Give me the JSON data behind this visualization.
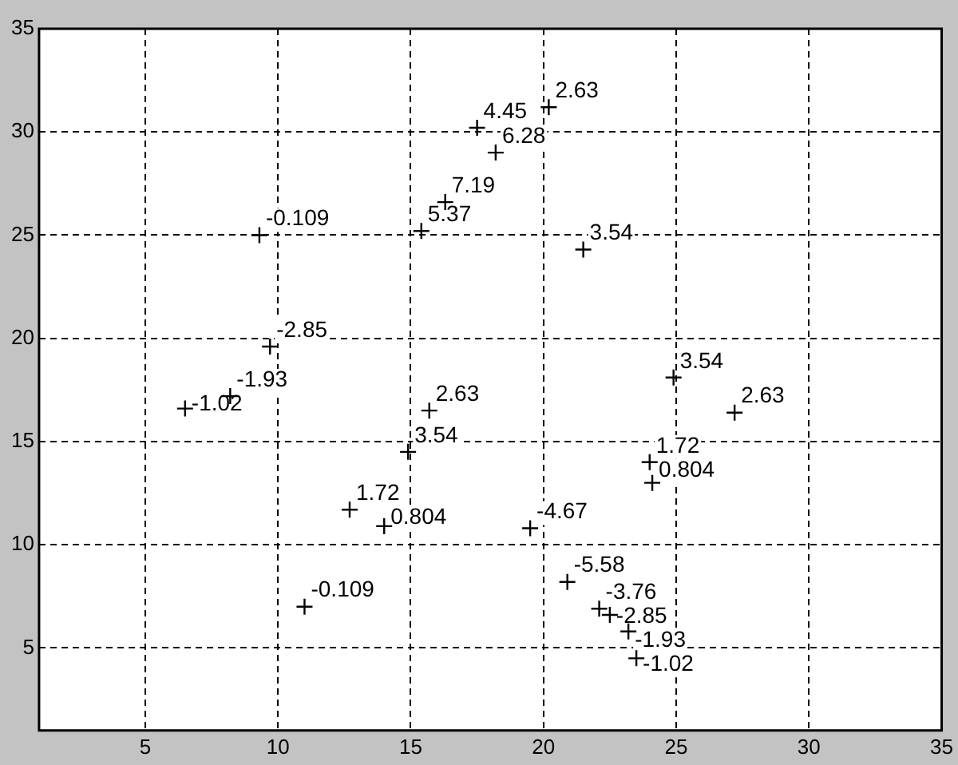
{
  "chart_data": {
    "type": "scatter",
    "xlim": [
      1,
      35
    ],
    "ylim": [
      1,
      35
    ],
    "xticks": [
      5,
      10,
      15,
      20,
      25,
      30,
      35
    ],
    "yticks": [
      5,
      10,
      15,
      20,
      25,
      30,
      35
    ],
    "grid": true,
    "marker": "cross",
    "legend": false,
    "series": [
      {
        "color": "#000000",
        "x": [
          9.3,
          20.2,
          17.5,
          18.2,
          16.3,
          15.4,
          21.5,
          9.7,
          8.2,
          6.5,
          15.7,
          14.9,
          12.7,
          14.0,
          11.0,
          24.9,
          27.2,
          24.0,
          24.1,
          19.5,
          20.9,
          22.1,
          22.5,
          23.2,
          23.5
        ],
        "values": [
          25.0,
          31.2,
          30.2,
          29.0,
          26.6,
          25.2,
          24.3,
          19.6,
          17.2,
          16.6,
          16.5,
          14.5,
          11.7,
          10.9,
          7.0,
          18.1,
          16.4,
          14.0,
          13.0,
          10.8,
          8.2,
          6.9,
          6.6,
          5.8,
          4.5
        ]
      }
    ],
    "annotations": [
      {
        "text": "-0.109",
        "x": 9.3,
        "y": 25.0
      },
      {
        "text": "2.63",
        "x": 20.2,
        "y": 31.2
      },
      {
        "text": "4.45",
        "x": 17.5,
        "y": 30.2
      },
      {
        "text": "6.28",
        "x": 18.2,
        "y": 29.0
      },
      {
        "text": "7.19",
        "x": 16.3,
        "y": 26.6
      },
      {
        "text": "5.37",
        "x": 15.4,
        "y": 25.2
      },
      {
        "text": "3.54",
        "x": 21.5,
        "y": 24.3
      },
      {
        "text": "-2.85",
        "x": 9.7,
        "y": 19.6
      },
      {
        "text": "-1.93",
        "x": 8.2,
        "y": 17.2
      },
      {
        "text": "-1.02",
        "x": 6.5,
        "y": 16.6
      },
      {
        "text": "2.63",
        "x": 15.7,
        "y": 16.5
      },
      {
        "text": "3.54",
        "x": 14.9,
        "y": 14.5
      },
      {
        "text": "1.72",
        "x": 12.7,
        "y": 11.7
      },
      {
        "text": "0.804",
        "x": 14.0,
        "y": 10.9
      },
      {
        "text": "-0.109",
        "x": 11.0,
        "y": 7.0
      },
      {
        "text": "3.54",
        "x": 24.9,
        "y": 18.1
      },
      {
        "text": "2.63",
        "x": 27.2,
        "y": 16.4
      },
      {
        "text": "1.72",
        "x": 24.0,
        "y": 14.0
      },
      {
        "text": "0.804",
        "x": 24.1,
        "y": 13.0
      },
      {
        "text": "-4.67",
        "x": 19.5,
        "y": 10.8
      },
      {
        "text": "-5.58",
        "x": 20.9,
        "y": 8.2
      },
      {
        "text": "-3.76",
        "x": 22.1,
        "y": 6.9
      },
      {
        "text": "-2.85",
        "x": 22.5,
        "y": 6.6
      },
      {
        "text": "-1.93",
        "x": 23.2,
        "y": 5.8
      },
      {
        "text": "-1.02",
        "x": 23.5,
        "y": 4.5
      }
    ]
  }
}
